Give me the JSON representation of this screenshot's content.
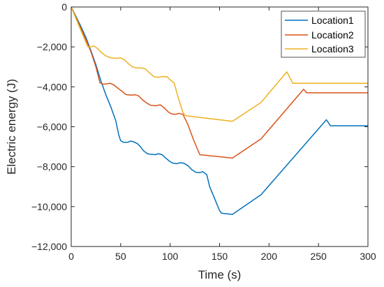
{
  "chart_data": {
    "type": "line",
    "xlabel": "Time (s)",
    "ylabel": "Electric energy (J)",
    "xlim": [
      0,
      300
    ],
    "ylim": [
      -12000,
      0
    ],
    "xticks": [
      0,
      50,
      100,
      150,
      200,
      250,
      300
    ],
    "xtick_labels": [
      "0",
      "50",
      "100",
      "150",
      "200",
      "250",
      "300"
    ],
    "yticks": [
      0,
      -2000,
      -4000,
      -6000,
      -8000,
      -10000,
      -12000
    ],
    "ytick_labels": [
      "0",
      "−2,000",
      "−4,000",
      "−6,000",
      "−8,000",
      "−10,000",
      "−12,000"
    ],
    "grid": false,
    "legend_position": "top-right",
    "series": [
      {
        "name": "Location1",
        "color": "#0072BD",
        "points": [
          [
            0,
            0
          ],
          [
            5,
            -500
          ],
          [
            10,
            -1000
          ],
          [
            15,
            -1550
          ],
          [
            20,
            -2200
          ],
          [
            25,
            -2900
          ],
          [
            30,
            -3700
          ],
          [
            35,
            -4400
          ],
          [
            40,
            -5000
          ],
          [
            45,
            -5700
          ],
          [
            48,
            -6400
          ],
          [
            50,
            -6700
          ],
          [
            53,
            -6780
          ],
          [
            57,
            -6780
          ],
          [
            60,
            -6720
          ],
          [
            63,
            -6750
          ],
          [
            67,
            -6850
          ],
          [
            70,
            -7000
          ],
          [
            73,
            -7200
          ],
          [
            77,
            -7350
          ],
          [
            80,
            -7380
          ],
          [
            85,
            -7400
          ],
          [
            88,
            -7350
          ],
          [
            92,
            -7400
          ],
          [
            95,
            -7550
          ],
          [
            100,
            -7750
          ],
          [
            103,
            -7830
          ],
          [
            107,
            -7850
          ],
          [
            110,
            -7800
          ],
          [
            114,
            -7830
          ],
          [
            118,
            -7950
          ],
          [
            122,
            -8150
          ],
          [
            126,
            -8280
          ],
          [
            130,
            -8300
          ],
          [
            133,
            -8250
          ],
          [
            137,
            -8400
          ],
          [
            140,
            -9000
          ],
          [
            145,
            -9600
          ],
          [
            150,
            -10200
          ],
          [
            152,
            -10330
          ],
          [
            157,
            -10360
          ],
          [
            163,
            -10390
          ],
          [
            192,
            -9400
          ],
          [
            258,
            -5650
          ],
          [
            262,
            -5950
          ],
          [
            300,
            -5950
          ]
        ]
      },
      {
        "name": "Location2",
        "color": "#D95319",
        "points": [
          [
            0,
            0
          ],
          [
            5,
            -550
          ],
          [
            10,
            -1100
          ],
          [
            15,
            -1650
          ],
          [
            20,
            -2250
          ],
          [
            25,
            -3000
          ],
          [
            29,
            -3800
          ],
          [
            32,
            -3870
          ],
          [
            36,
            -3850
          ],
          [
            39,
            -3820
          ],
          [
            43,
            -3900
          ],
          [
            48,
            -4100
          ],
          [
            52,
            -4250
          ],
          [
            55,
            -4380
          ],
          [
            60,
            -4420
          ],
          [
            65,
            -4400
          ],
          [
            68,
            -4450
          ],
          [
            72,
            -4650
          ],
          [
            76,
            -4800
          ],
          [
            80,
            -4920
          ],
          [
            85,
            -4950
          ],
          [
            90,
            -4900
          ],
          [
            94,
            -5050
          ],
          [
            98,
            -5250
          ],
          [
            101,
            -5350
          ],
          [
            105,
            -5380
          ],
          [
            109,
            -5330
          ],
          [
            113,
            -5380
          ],
          [
            118,
            -5900
          ],
          [
            124,
            -6700
          ],
          [
            130,
            -7400
          ],
          [
            163,
            -7570
          ],
          [
            192,
            -6600
          ],
          [
            235,
            -4120
          ],
          [
            238,
            -4300
          ],
          [
            300,
            -4300
          ]
        ]
      },
      {
        "name": "Location3",
        "color": "#EDB120",
        "points": [
          [
            0,
            0
          ],
          [
            5,
            -600
          ],
          [
            10,
            -1200
          ],
          [
            15,
            -1800
          ],
          [
            17,
            -2000
          ],
          [
            20,
            -2000
          ],
          [
            23,
            -1950
          ],
          [
            27,
            -2100
          ],
          [
            31,
            -2300
          ],
          [
            35,
            -2450
          ],
          [
            40,
            -2550
          ],
          [
            45,
            -2570
          ],
          [
            50,
            -2550
          ],
          [
            54,
            -2650
          ],
          [
            58,
            -2850
          ],
          [
            62,
            -3000
          ],
          [
            66,
            -3050
          ],
          [
            71,
            -3050
          ],
          [
            75,
            -3100
          ],
          [
            79,
            -3300
          ],
          [
            84,
            -3500
          ],
          [
            88,
            -3520
          ],
          [
            93,
            -3480
          ],
          [
            97,
            -3500
          ],
          [
            100,
            -3650
          ],
          [
            104,
            -3800
          ],
          [
            108,
            -4500
          ],
          [
            113,
            -5300
          ],
          [
            116,
            -5450
          ],
          [
            163,
            -5730
          ],
          [
            192,
            -4780
          ],
          [
            218,
            -3250
          ],
          [
            224,
            -3820
          ],
          [
            300,
            -3820
          ]
        ]
      }
    ]
  }
}
